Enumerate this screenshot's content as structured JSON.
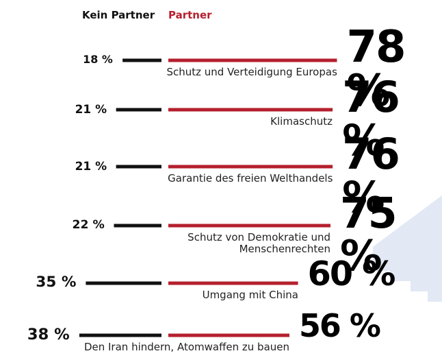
{
  "chart_data": {
    "type": "diverging-bar",
    "categories": [
      "Schutz und Verteidigung Europas",
      "Klimaschutz",
      "Garantie des freien Welthandels",
      "Schutz von Demokratie und Menschenrechten",
      "Umgang mit China",
      "Den Iran hindern, Atomwaffen zu bauen"
    ],
    "series": [
      {
        "name": "Kein Partner",
        "color": "#111111",
        "values": [
          18,
          21,
          21,
          22,
          35,
          38
        ],
        "value_labels": [
          "18 %",
          "21 %",
          "21 %",
          "22 %",
          "35 %",
          "38 %"
        ]
      },
      {
        "name": "Partner",
        "color": "#b5202e",
        "values": [
          78,
          76,
          76,
          75,
          60,
          56
        ],
        "value_labels": [
          "78 %",
          "76 %",
          "76 %",
          "75 %",
          "60 %",
          "56 %"
        ]
      }
    ]
  }
}
